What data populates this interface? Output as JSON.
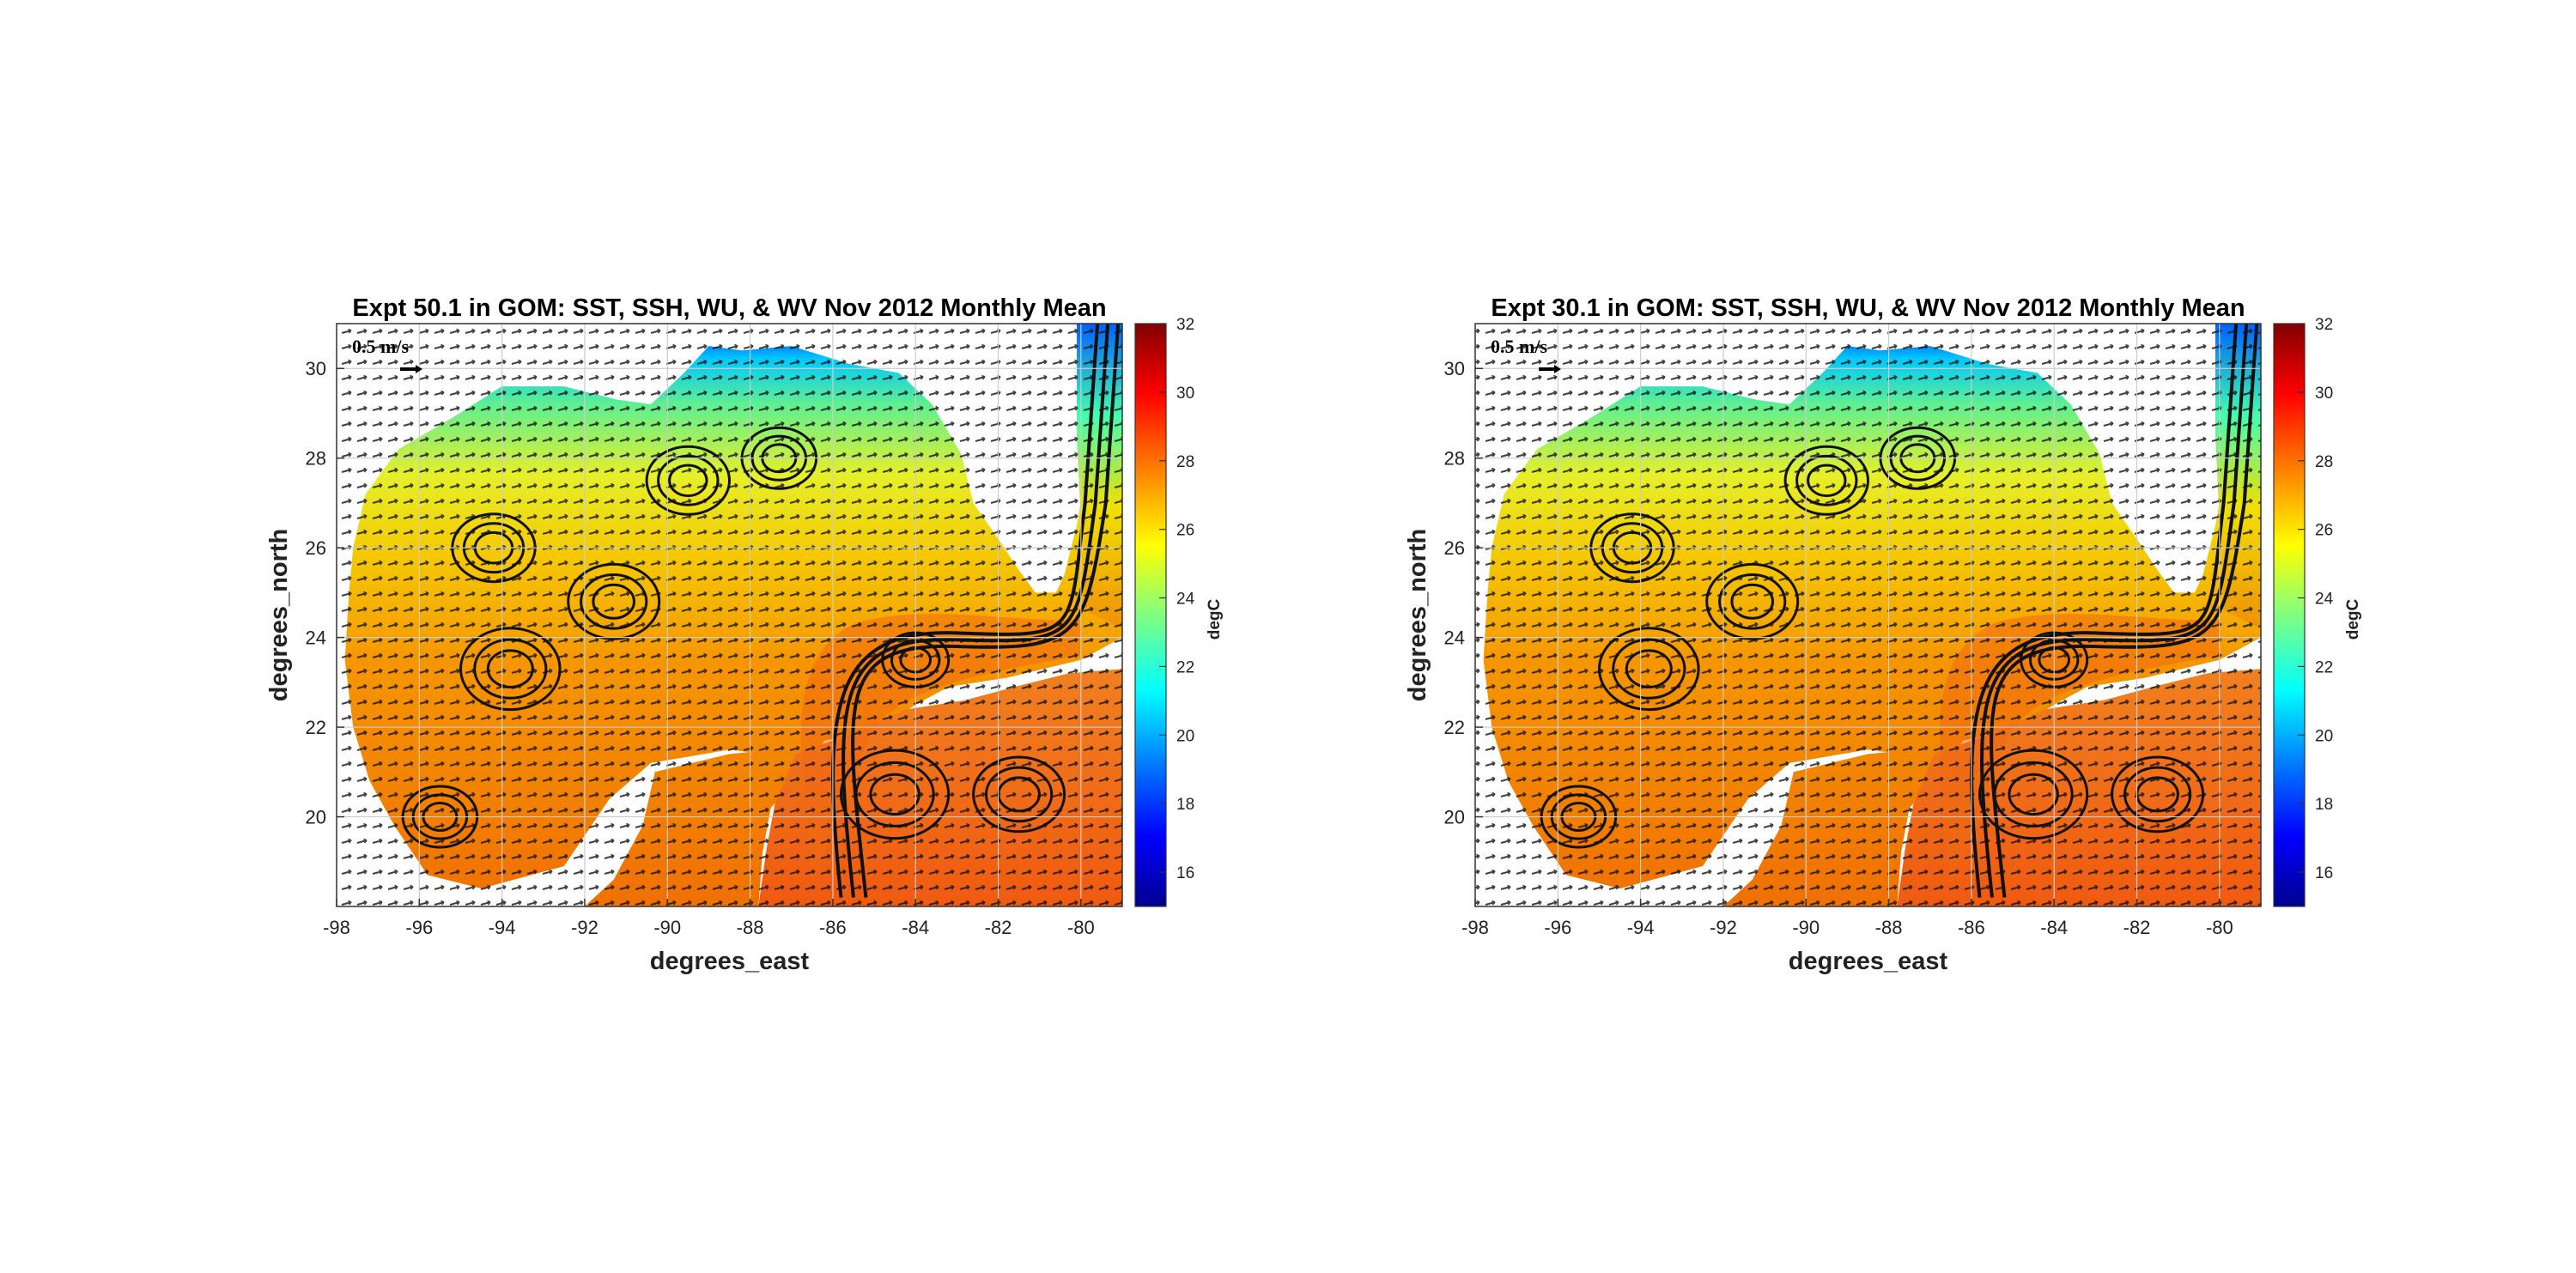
{
  "chart_data": [
    {
      "type": "heatmap",
      "title": "Expt 50.1 in GOM: SST, SSH, WU, & WV Nov 2012 Monthly Mean",
      "xlabel": "degrees_east",
      "ylabel": "degrees_north",
      "xlim": [
        -98,
        -79
      ],
      "ylim": [
        18,
        31
      ],
      "x_ticks": [
        -98,
        -96,
        -94,
        -92,
        -90,
        -88,
        -86,
        -84,
        -82,
        -80
      ],
      "y_ticks": [
        20,
        22,
        24,
        26,
        28,
        30
      ],
      "grid": true,
      "colorbar": {
        "label": "degC",
        "range": [
          15,
          32
        ],
        "ticks": [
          16,
          18,
          20,
          22,
          24,
          26,
          28,
          30,
          32
        ],
        "colormap": [
          "#00008f",
          "#0000ff",
          "#0080ff",
          "#00ffff",
          "#80ff80",
          "#ffff00",
          "#ff8000",
          "#ff0000",
          "#800000"
        ]
      },
      "reference_vector": {
        "label": "0.5 m/s",
        "position": "top-left"
      }
    },
    {
      "type": "heatmap",
      "title": "Expt 30.1 in GOM: SST, SSH, WU, & WV Nov 2012 Monthly Mean",
      "xlabel": "degrees_east",
      "ylabel": "degrees_north",
      "xlim": [
        -98,
        -79
      ],
      "ylim": [
        18,
        31
      ],
      "x_ticks": [
        -98,
        -96,
        -94,
        -92,
        -90,
        -88,
        -86,
        -84,
        -82,
        -80
      ],
      "y_ticks": [
        20,
        22,
        24,
        26,
        28,
        30
      ],
      "grid": true,
      "colorbar": {
        "label": "degC",
        "range": [
          15,
          32
        ],
        "ticks": [
          16,
          18,
          20,
          22,
          24,
          26,
          28,
          30,
          32
        ],
        "colormap": [
          "#00008f",
          "#0000ff",
          "#0080ff",
          "#00ffff",
          "#80ff80",
          "#ffff00",
          "#ff8000",
          "#ff0000",
          "#800000"
        ]
      },
      "reference_vector": {
        "label": "0.5 m/s",
        "position": "top-left"
      }
    }
  ]
}
